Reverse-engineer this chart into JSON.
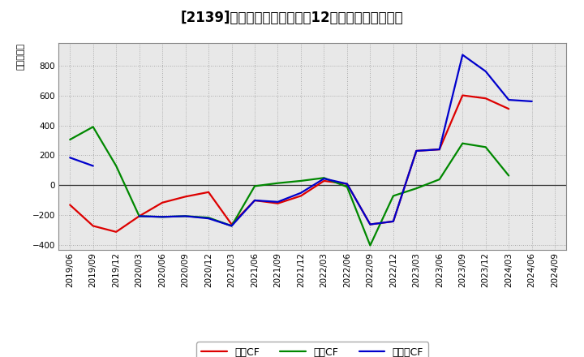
{
  "title": "[2139]　キャッシュフローの12か月移動合計の推移",
  "ylabel": "（百万円）",
  "x_labels": [
    "2019/06",
    "2019/09",
    "2019/12",
    "2020/03",
    "2020/06",
    "2020/09",
    "2020/12",
    "2021/03",
    "2021/06",
    "2021/09",
    "2021/12",
    "2022/03",
    "2022/06",
    "2022/09",
    "2022/12",
    "2023/03",
    "2023/06",
    "2023/09",
    "2023/12",
    "2024/03",
    "2024/06",
    "2024/09"
  ],
  "eigyo_cf": [
    -130,
    -270,
    -310,
    -205,
    -115,
    -75,
    -45,
    -260,
    -100,
    -120,
    -70,
    30,
    10,
    -260,
    -240,
    230,
    240,
    600,
    580,
    510,
    null,
    null
  ],
  "toshi_cf": [
    305,
    390,
    130,
    -205,
    -210,
    -205,
    -215,
    -270,
    -5,
    15,
    30,
    50,
    -10,
    -400,
    -70,
    -20,
    40,
    280,
    255,
    65,
    null,
    null
  ],
  "free_cf": [
    185,
    130,
    null,
    -205,
    -210,
    -205,
    -220,
    -270,
    -100,
    -110,
    -50,
    45,
    10,
    -260,
    -240,
    230,
    240,
    870,
    760,
    570,
    560,
    null
  ],
  "eigyo_color": "#dd0000",
  "toshi_color": "#008800",
  "free_color": "#0000cc",
  "ylim": [
    -430,
    950
  ],
  "yticks": [
    -400,
    -200,
    0,
    200,
    400,
    600,
    800
  ],
  "background_color": "#ffffff",
  "plot_bg_color": "#e8e8e8",
  "legend_labels": [
    "営業CF",
    "投資CF",
    "フリーCF"
  ],
  "title_fontsize": 12,
  "tick_fontsize": 7.5,
  "ylabel_fontsize": 8
}
